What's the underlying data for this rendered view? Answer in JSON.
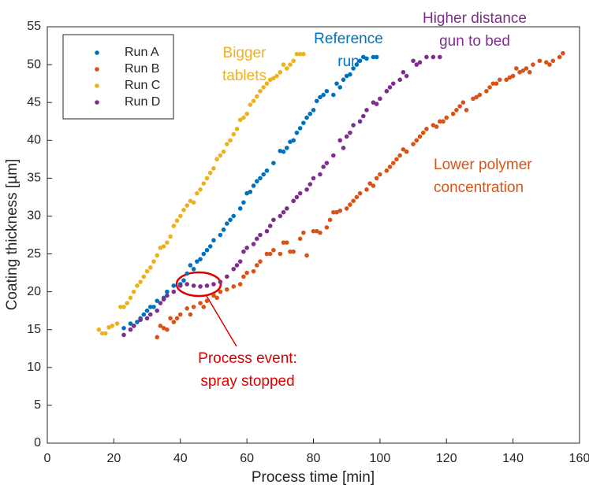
{
  "chart_data": {
    "type": "scatter",
    "xlabel": "Process time [min]",
    "ylabel": "Coating thickness [µm]",
    "xlim": [
      0,
      160
    ],
    "xticks": [
      0,
      20,
      40,
      60,
      80,
      100,
      120,
      140,
      160
    ],
    "ylim": [
      0,
      55
    ],
    "yticks": [
      0,
      5,
      10,
      15,
      20,
      25,
      30,
      35,
      40,
      45,
      50,
      55
    ],
    "legend": "top-left",
    "series": [
      {
        "name": "Run A",
        "color": "#0072BD",
        "x": [
          23,
          25,
          26,
          27,
          28,
          29,
          30,
          31,
          32,
          33,
          35,
          36,
          38,
          40,
          41,
          42,
          43,
          44,
          45,
          46,
          47,
          48,
          49,
          50,
          52,
          53,
          54,
          55,
          56,
          58,
          59,
          60,
          61,
          62,
          63,
          64,
          65,
          66,
          68,
          70,
          71,
          72,
          73,
          74,
          75,
          76,
          77,
          78,
          79,
          80,
          81,
          82,
          83,
          84,
          86,
          87,
          88,
          89,
          90,
          91,
          92,
          93,
          94,
          95,
          96,
          98,
          99
        ],
        "values": [
          15.2,
          15.8,
          15.5,
          16,
          16.5,
          17,
          17.5,
          18,
          18,
          18.8,
          19.2,
          20,
          20.8,
          21,
          21.5,
          22.4,
          23.5,
          23,
          24,
          24.3,
          25,
          25.5,
          26,
          26.8,
          27.5,
          28.2,
          29,
          29.5,
          30,
          31,
          31.8,
          33,
          33.2,
          34,
          34.6,
          35,
          35.5,
          36,
          37,
          38.6,
          38.5,
          39,
          39.8,
          40,
          41,
          41.6,
          42.3,
          43,
          43.5,
          44,
          45.2,
          45.7,
          46,
          46.5,
          46,
          47.5,
          47,
          48,
          48.5,
          48.7,
          49.5,
          50,
          50.5,
          51,
          50.8,
          51,
          51
        ]
      },
      {
        "name": "Run B",
        "color": "#D95319",
        "x": [
          33,
          34,
          35,
          36,
          37,
          38,
          39,
          40,
          42,
          43,
          44,
          46,
          47,
          48,
          50,
          51,
          52,
          54,
          56,
          58,
          59,
          60,
          62,
          63,
          64,
          66,
          67,
          68,
          70,
          71,
          72,
          73,
          74,
          76,
          77,
          78,
          80,
          81,
          82,
          84,
          85,
          86,
          87,
          88,
          90,
          91,
          92,
          93,
          94,
          96,
          97,
          98,
          99,
          100,
          102,
          103,
          104,
          105,
          106,
          107,
          108,
          110,
          111,
          112,
          113,
          114,
          116,
          117,
          118,
          119,
          120,
          122,
          123,
          124,
          125,
          126,
          128,
          129,
          130,
          132,
          133,
          134,
          135,
          136,
          138,
          139,
          140,
          141,
          142,
          143,
          144,
          145,
          146,
          148,
          150,
          151,
          152,
          154,
          155
        ],
        "values": [
          14,
          15.5,
          15.2,
          15,
          16.5,
          16,
          16.5,
          17,
          17.8,
          17,
          18,
          18.5,
          18,
          18.8,
          19.5,
          19.2,
          20,
          20.3,
          20.7,
          21,
          22,
          22.5,
          22.7,
          23.5,
          24,
          25,
          25,
          25.5,
          25,
          26.5,
          26.5,
          25.3,
          25.3,
          27,
          27.8,
          24.8,
          28,
          28,
          27.8,
          28.5,
          29.5,
          30.5,
          30.5,
          30.7,
          31,
          31.5,
          32,
          32.5,
          33,
          33.5,
          34.3,
          34,
          35,
          35.5,
          36,
          36.5,
          37,
          37.5,
          38,
          38.8,
          38.5,
          39.5,
          40,
          40.5,
          41,
          41.5,
          42,
          41.8,
          42.5,
          42.5,
          43,
          43.5,
          44,
          44.5,
          45,
          44,
          45.5,
          45.7,
          46,
          46.5,
          47,
          47.5,
          47.5,
          48,
          48,
          48.3,
          48.5,
          49.5,
          49,
          49.2,
          49.5,
          49,
          50,
          50.5,
          50.3,
          50,
          50.5,
          51,
          51.5
        ]
      },
      {
        "name": "Run C",
        "color": "#EDB120",
        "x": [
          15.5,
          16.5,
          17.5,
          18.5,
          19.5,
          21,
          22,
          23,
          24,
          25,
          26,
          27,
          28,
          29,
          30,
          31,
          32,
          33,
          34,
          35,
          36,
          37,
          38,
          39,
          40,
          41,
          42,
          43,
          44,
          45,
          46,
          47,
          48,
          49,
          50,
          51,
          52,
          53,
          54,
          55,
          56,
          57,
          58,
          59,
          60,
          61,
          62,
          63,
          64,
          65,
          66,
          67,
          68,
          69,
          70,
          71,
          72,
          73,
          74,
          75,
          76,
          77
        ],
        "values": [
          15,
          14.5,
          14.5,
          15.3,
          15.5,
          15.8,
          18,
          18,
          18.5,
          19.2,
          20,
          20.8,
          21.3,
          22,
          22.7,
          23.2,
          24,
          24.8,
          25.8,
          26,
          26.5,
          27.3,
          28.7,
          29.4,
          30,
          30.8,
          31.4,
          32,
          31.8,
          33,
          33.5,
          34.3,
          35,
          35.7,
          36.3,
          37.5,
          38,
          38.5,
          39.5,
          40,
          40.8,
          41.5,
          42.7,
          43,
          43.5,
          44.7,
          45.2,
          45.8,
          46.5,
          47,
          47.5,
          48,
          48.2,
          48.5,
          49,
          50,
          49.5,
          50,
          50.5,
          51.4,
          51.4,
          51.4
        ]
      },
      {
        "name": "Run D",
        "color": "#7E2F8E",
        "x": [
          23,
          25,
          26,
          28,
          30,
          31,
          33,
          34,
          35,
          36,
          38,
          40,
          42,
          44,
          46,
          48,
          50,
          52,
          54,
          56,
          57,
          58,
          59,
          60,
          62,
          63,
          64,
          66,
          67,
          68,
          70,
          71,
          72,
          74,
          75,
          76,
          78,
          79,
          80,
          82,
          83,
          84,
          86,
          88,
          89,
          90,
          91,
          92,
          94,
          95,
          96,
          98,
          99,
          100,
          102,
          103,
          104,
          106,
          107,
          108,
          110,
          111,
          112,
          114,
          116,
          118
        ],
        "values": [
          14.3,
          15,
          15.5,
          16.3,
          16.5,
          17,
          17.5,
          18.5,
          19,
          19.5,
          20,
          20.8,
          21,
          20.8,
          20.7,
          20.8,
          21,
          21.3,
          22,
          23,
          23.5,
          24,
          25.3,
          25.8,
          26.3,
          27,
          27.5,
          28,
          28.7,
          29.5,
          30,
          30.5,
          31,
          32,
          32.5,
          33,
          33.5,
          34.2,
          35,
          35.5,
          36.5,
          37,
          38,
          40,
          39,
          40.5,
          41,
          42,
          42.5,
          43.2,
          44,
          45,
          44.8,
          45.5,
          46.5,
          47,
          47.5,
          48,
          49,
          48.5,
          50.5,
          50,
          50.3,
          51,
          51,
          51
        ]
      }
    ],
    "annotations": [
      {
        "text": [
          "Bigger",
          "tablets"
        ],
        "color": "#EDB120"
      },
      {
        "text": [
          "Reference",
          "run"
        ],
        "color": "#0072BD"
      },
      {
        "text": [
          "Higher distance",
          "gun to bed"
        ],
        "color": "#7E2F8E"
      },
      {
        "text": [
          "Lower polymer",
          "concentration"
        ],
        "color": "#D95319"
      },
      {
        "text": [
          "Process event:",
          "spray stopped"
        ],
        "color": "#E00000"
      }
    ]
  }
}
